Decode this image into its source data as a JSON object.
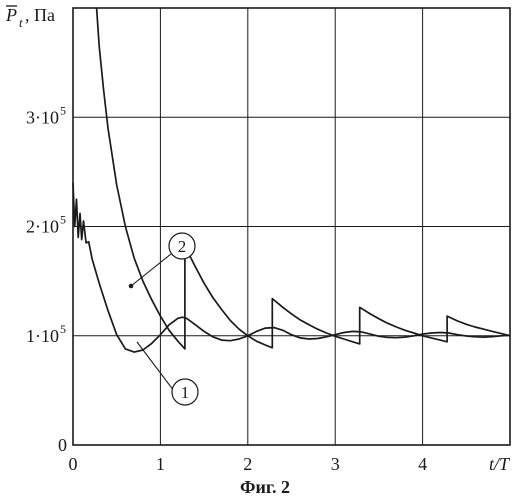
{
  "chart_data": {
    "type": "line",
    "title": "",
    "caption": "Фиг. 2",
    "xlabel": "t/T",
    "ylabel": {
      "symbol": "P",
      "subscript": "t",
      "unit": ", Па"
    },
    "xlim": [
      0,
      5
    ],
    "ylim": [
      0,
      400000
    ],
    "grid": true,
    "x_ticks": [
      {
        "value": 0,
        "label": "0"
      },
      {
        "value": 1,
        "label": "1"
      },
      {
        "value": 2,
        "label": "2"
      },
      {
        "value": 3,
        "label": "3"
      },
      {
        "value": 4,
        "label": "4"
      }
    ],
    "y_ticks": [
      {
        "value": 0,
        "mantissa": "0",
        "exponent": ""
      },
      {
        "value": 100000,
        "mantissa": "1·10",
        "exponent": "5"
      },
      {
        "value": 200000,
        "mantissa": "2·10",
        "exponent": "5"
      },
      {
        "value": 300000,
        "mantissa": "3·10",
        "exponent": "5"
      }
    ],
    "series": [
      {
        "label": "1",
        "color": "#1a1a1a",
        "points": [
          [
            0.0,
            240000
          ],
          [
            0.02,
            200000
          ],
          [
            0.04,
            225000
          ],
          [
            0.06,
            190000
          ],
          [
            0.08,
            212000
          ],
          [
            0.1,
            188000
          ],
          [
            0.12,
            205000
          ],
          [
            0.15,
            185000
          ],
          [
            0.18,
            186000
          ],
          [
            0.22,
            170000
          ],
          [
            0.3,
            148000
          ],
          [
            0.4,
            123000
          ],
          [
            0.5,
            101000
          ],
          [
            0.6,
            88000
          ],
          [
            0.7,
            85000
          ],
          [
            0.8,
            87000
          ],
          [
            0.9,
            93000
          ],
          [
            1.0,
            101000
          ],
          [
            1.1,
            110000
          ],
          [
            1.2,
            116000
          ],
          [
            1.25,
            117000
          ],
          [
            1.3,
            116000
          ],
          [
            1.4,
            110000
          ],
          [
            1.5,
            104000
          ],
          [
            1.6,
            99000
          ],
          [
            1.7,
            96000
          ],
          [
            1.8,
            95500
          ],
          [
            1.9,
            97000
          ],
          [
            2.0,
            100000
          ],
          [
            2.1,
            104000
          ],
          [
            2.2,
            107000
          ],
          [
            2.3,
            107500
          ],
          [
            2.4,
            105000
          ],
          [
            2.5,
            101000
          ],
          [
            2.6,
            98000
          ],
          [
            2.7,
            97000
          ],
          [
            2.8,
            97500
          ],
          [
            2.9,
            99000
          ],
          [
            3.0,
            101000
          ],
          [
            3.1,
            103000
          ],
          [
            3.2,
            104000
          ],
          [
            3.3,
            103500
          ],
          [
            3.4,
            101500
          ],
          [
            3.5,
            99500
          ],
          [
            3.6,
            98500
          ],
          [
            3.7,
            98200
          ],
          [
            3.8,
            98800
          ],
          [
            3.9,
            100000
          ],
          [
            4.0,
            101500
          ],
          [
            4.1,
            102500
          ],
          [
            4.2,
            103000
          ],
          [
            4.3,
            102500
          ],
          [
            4.4,
            101000
          ],
          [
            4.5,
            99800
          ],
          [
            4.6,
            99000
          ],
          [
            4.7,
            98800
          ],
          [
            4.8,
            99200
          ],
          [
            4.9,
            100000
          ],
          [
            5.0,
            100500
          ]
        ]
      },
      {
        "label": "2",
        "color": "#1a1a1a",
        "points": [
          [
            0.27,
            400000
          ],
          [
            0.3,
            365000
          ],
          [
            0.35,
            325000
          ],
          [
            0.4,
            290000
          ],
          [
            0.5,
            238000
          ],
          [
            0.6,
            200000
          ],
          [
            0.7,
            171000
          ],
          [
            0.8,
            150000
          ],
          [
            0.9,
            133000
          ],
          [
            1.0,
            118000
          ],
          [
            1.1,
            105000
          ],
          [
            1.2,
            95000
          ],
          [
            1.28,
            88000
          ],
          [
            1.28,
            182000
          ],
          [
            1.4,
            163000
          ],
          [
            1.5,
            148000
          ],
          [
            1.6,
            135000
          ],
          [
            1.7,
            124000
          ],
          [
            1.8,
            114000
          ],
          [
            1.9,
            106000
          ],
          [
            2.0,
            100000
          ],
          [
            2.1,
            95000
          ],
          [
            2.2,
            91500
          ],
          [
            2.28,
            89000
          ],
          [
            2.28,
            134000
          ],
          [
            2.4,
            126000
          ],
          [
            2.5,
            120000
          ],
          [
            2.6,
            114500
          ],
          [
            2.7,
            110000
          ],
          [
            2.8,
            106000
          ],
          [
            2.9,
            102500
          ],
          [
            3.0,
            99500
          ],
          [
            3.1,
            97000
          ],
          [
            3.2,
            94500
          ],
          [
            3.28,
            92500
          ],
          [
            3.28,
            126000
          ],
          [
            3.4,
            120000
          ],
          [
            3.5,
            115500
          ],
          [
            3.6,
            111500
          ],
          [
            3.7,
            108000
          ],
          [
            3.8,
            105000
          ],
          [
            3.9,
            102500
          ],
          [
            4.0,
            100000
          ],
          [
            4.1,
            98000
          ],
          [
            4.2,
            96000
          ],
          [
            4.28,
            94500
          ],
          [
            4.28,
            118000
          ],
          [
            4.4,
            113500
          ],
          [
            4.5,
            110500
          ],
          [
            4.6,
            108000
          ],
          [
            4.7,
            106000
          ],
          [
            4.8,
            104000
          ],
          [
            4.9,
            102000
          ],
          [
            5.0,
            100000
          ]
        ]
      }
    ],
    "annotations": [
      {
        "text": "1",
        "series": "1"
      },
      {
        "text": "2",
        "series": "2"
      }
    ]
  }
}
